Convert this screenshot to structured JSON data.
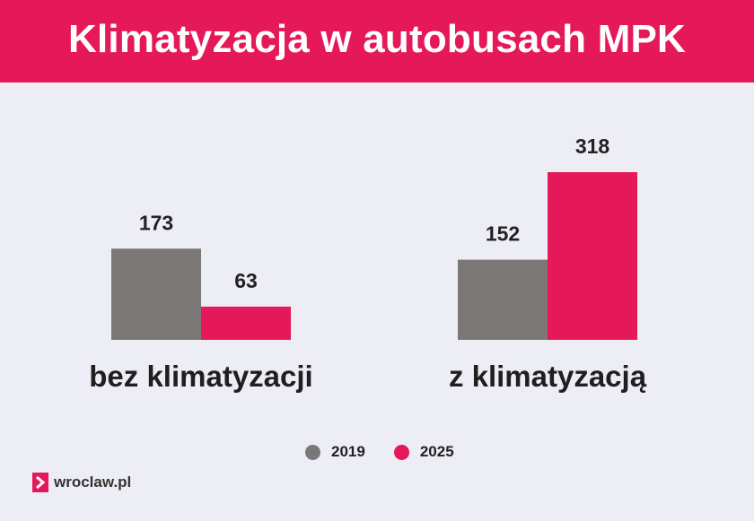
{
  "title": "Klimatyzacja w autobusach MPK",
  "colors": {
    "header_bg": "#e5195a",
    "series_2019": "#7b7776",
    "series_2025": "#e5195a",
    "background": "#ecedf5"
  },
  "chart_data": {
    "type": "bar",
    "categories": [
      "bez klimatyzacji",
      "z klimatyzacją"
    ],
    "series": [
      {
        "name": "2019",
        "color": "#7b7776",
        "values": [
          173,
          152
        ]
      },
      {
        "name": "2025",
        "color": "#e5195a",
        "values": [
          63,
          318
        ]
      }
    ],
    "title": "Klimatyzacja w autobusach MPK",
    "xlabel": "",
    "ylabel": "",
    "ylim": [
      0,
      318
    ],
    "grid": false,
    "legend": "bottom-center",
    "data_labels": true
  },
  "legend": [
    {
      "label": "2019",
      "color": "#7b7776"
    },
    {
      "label": "2025",
      "color": "#e5195a"
    }
  ],
  "logo": {
    "text": "wroclaw.pl",
    "icon": "chevron-right-icon"
  }
}
